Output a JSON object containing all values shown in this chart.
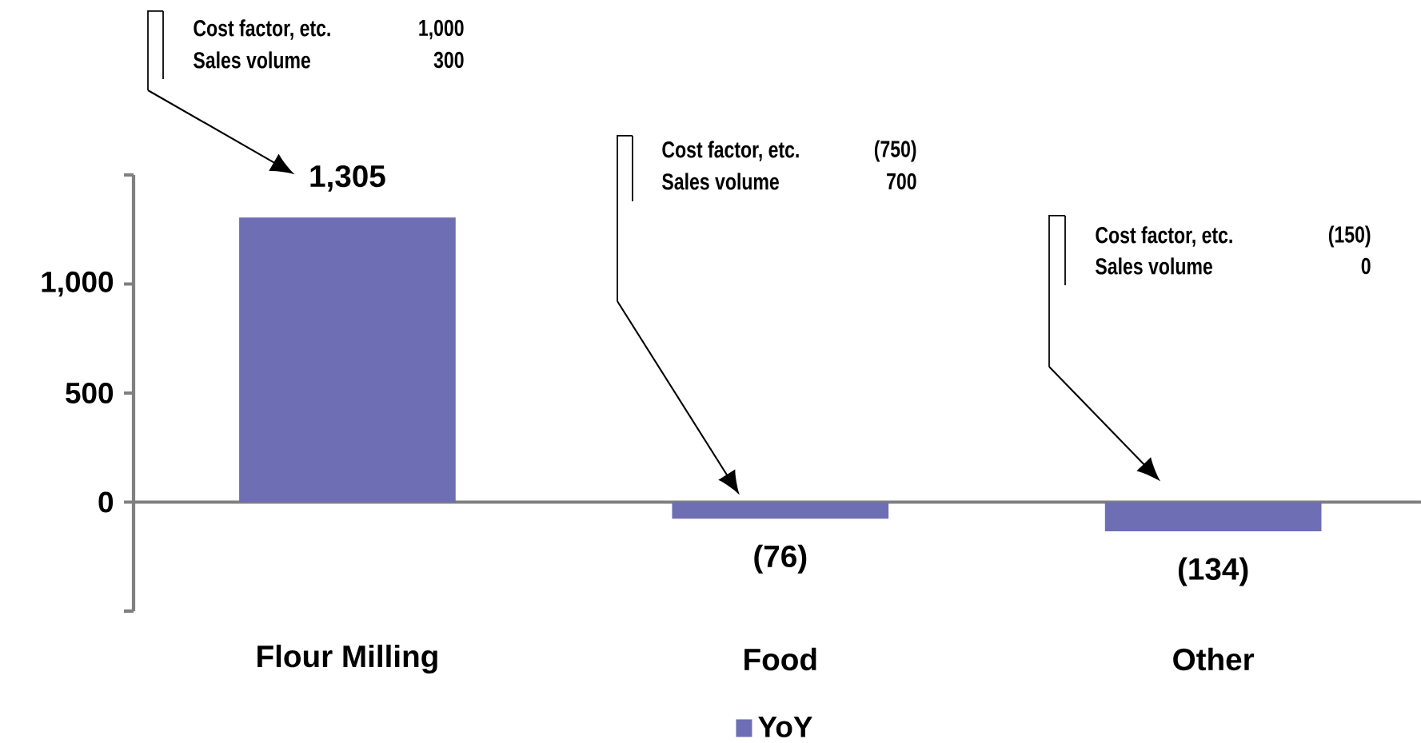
{
  "chart_data": {
    "type": "bar",
    "categories": [
      "Flour Milling",
      "Food",
      "Other"
    ],
    "series": [
      {
        "name": "YoY",
        "color": "#6e6eb4",
        "values": [
          1305,
          -76,
          -134
        ],
        "value_labels": [
          "1,305",
          "(76)",
          "(134)"
        ]
      }
    ],
    "ylim": [
      -500,
      1500
    ],
    "yticks": [
      {
        "value": -500,
        "label": null
      },
      0,
      500,
      {
        "value": 1000,
        "label": "1,000"
      },
      {
        "value": 1500,
        "label": null
      }
    ],
    "legend": "bottom",
    "annotations": [
      "Cost factor, etc.",
      "1,000",
      "Sales volume",
      "300",
      "Cost factor, etc.",
      "(750)",
      "Sales volume",
      "700",
      "Cost factor, etc.",
      "(150)",
      "Sales volume",
      "0"
    ]
  }
}
